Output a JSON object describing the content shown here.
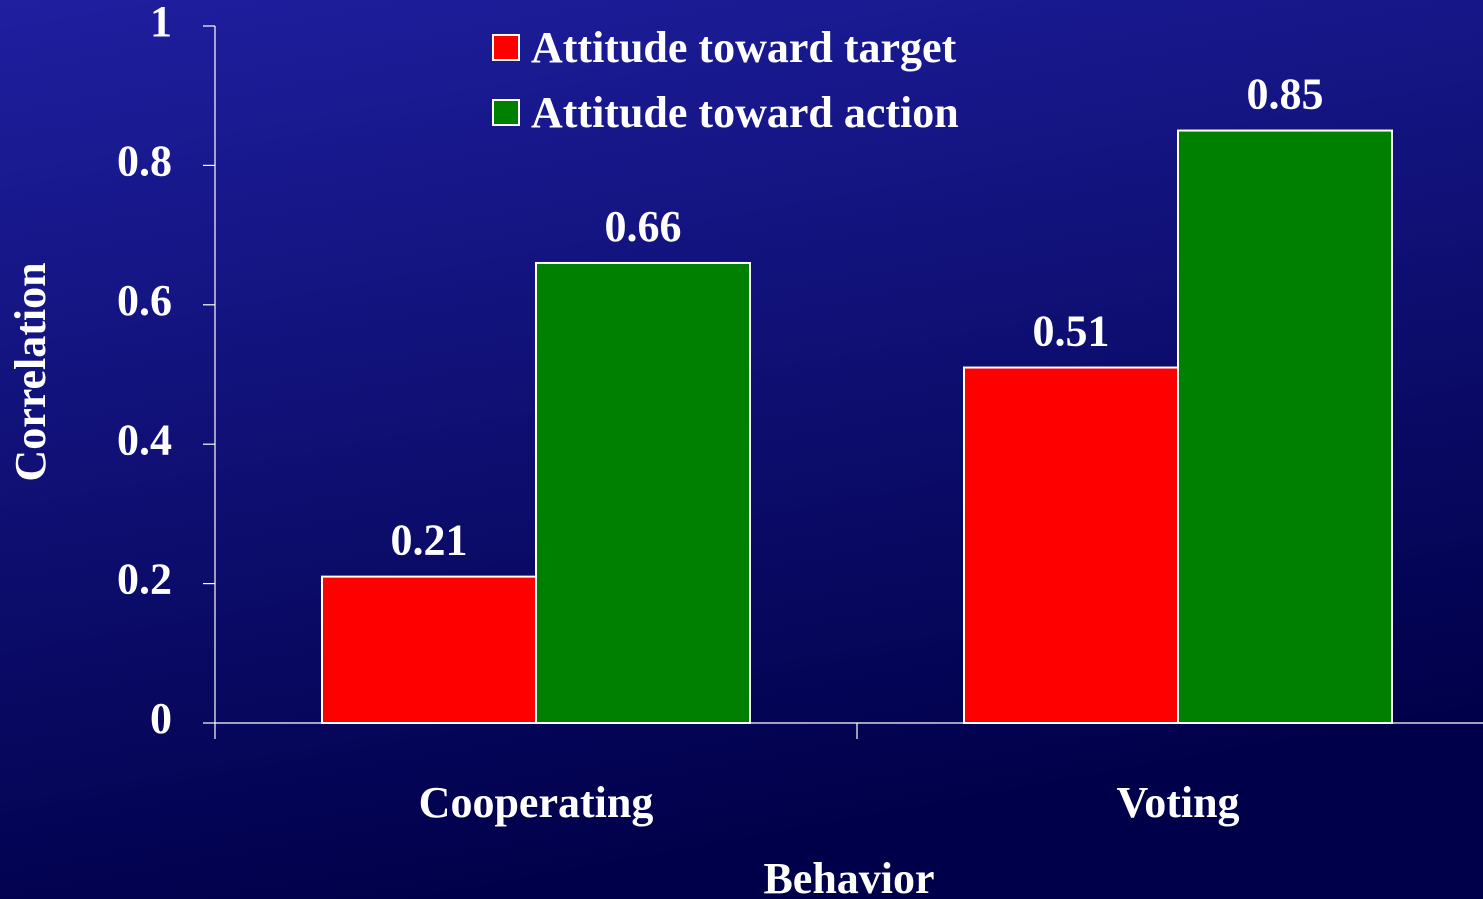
{
  "chart_data": {
    "type": "bar",
    "categories": [
      "Cooperating",
      "Voting"
    ],
    "series": [
      {
        "name": "Attitude toward target",
        "color": "#ff0000",
        "values": [
          0.21,
          0.51
        ]
      },
      {
        "name": "Attitude toward action",
        "color": "#008000",
        "values": [
          0.66,
          0.85
        ]
      }
    ],
    "ylim": [
      0,
      1
    ],
    "yticks": [
      0,
      0.2,
      0.4,
      0.6,
      0.8,
      1
    ],
    "ylabel": "Correlation",
    "xlabel": "Behavior",
    "legend": "top"
  }
}
